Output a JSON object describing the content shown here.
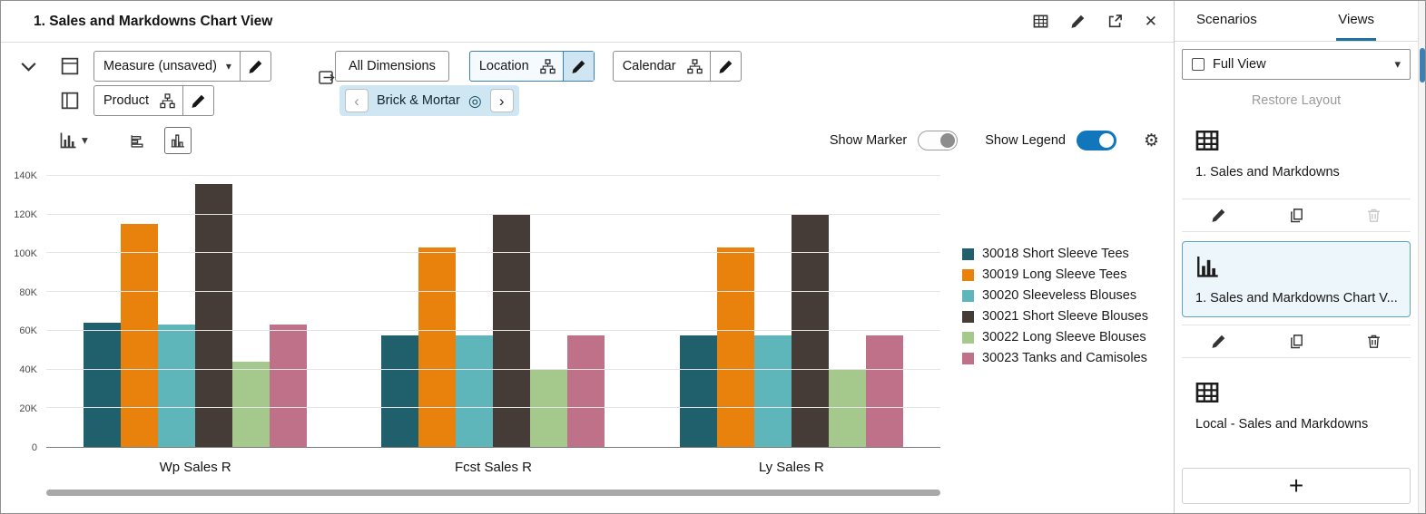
{
  "header": {
    "title": "1. Sales and Markdowns Chart View"
  },
  "toolbar": {
    "measure_label": "Measure (unsaved)",
    "product_label": "Product",
    "all_dimensions_label": "All Dimensions",
    "location_label": "Location",
    "calendar_label": "Calendar",
    "breadcrumb_label": "Brick & Mortar"
  },
  "controls": {
    "show_marker_label": "Show Marker",
    "marker_on": false,
    "show_legend_label": "Show Legend",
    "legend_on": true
  },
  "chart_data": {
    "type": "bar",
    "title": "",
    "categories": [
      "Wp Sales R",
      "Fcst Sales R",
      "Ly Sales R"
    ],
    "series": [
      {
        "name": "30018 Short Sleeve Tees",
        "color": "#1f606c",
        "values": [
          64000,
          57500,
          57500
        ]
      },
      {
        "name": "30019 Long Sleeve Tees",
        "color": "#e8820c",
        "values": [
          115000,
          103000,
          103000
        ]
      },
      {
        "name": "30020 Sleeveless Blouses",
        "color": "#5eb6bb",
        "values": [
          63000,
          57500,
          57500
        ]
      },
      {
        "name": "30021 Short Sleeve Blouses",
        "color": "#463c37",
        "values": [
          136000,
          120500,
          120500
        ]
      },
      {
        "name": "30022 Long Sleeve Blouses",
        "color": "#a5c98c",
        "values": [
          44000,
          40000,
          40000
        ]
      },
      {
        "name": "30023 Tanks and Camisoles",
        "color": "#c0718a",
        "values": [
          63000,
          57500,
          57500
        ]
      }
    ],
    "ylim": [
      0,
      140000
    ],
    "ytick_step": 20000,
    "ytick_labels": [
      "0",
      "20K",
      "40K",
      "60K",
      "80K",
      "100K",
      "120K",
      "140K"
    ],
    "grid": true,
    "legend_position": "right"
  },
  "sidebar": {
    "tabs": [
      {
        "label": "Scenarios"
      },
      {
        "label": "Views"
      }
    ],
    "active_tab": "Views",
    "full_view_label": "Full View",
    "restore_layout_label": "Restore Layout",
    "views": [
      {
        "label": "1. Sales and Markdowns",
        "icon": "table-icon",
        "selected": false,
        "delete_enabled": false
      },
      {
        "label": "1. Sales and Markdowns Chart V...",
        "icon": "bar-chart-icon",
        "selected": true,
        "delete_enabled": true
      },
      {
        "label": "Local - Sales and Markdowns",
        "icon": "table-icon",
        "selected": false,
        "delete_enabled": true
      }
    ]
  },
  "icons": {
    "close": "✕",
    "gear": "⚙",
    "target": "◎",
    "chevron_left": "‹",
    "chevron_right": "›",
    "caret_down": "▾",
    "plus": "+"
  },
  "colors": {
    "accent_blue": "#1276bd",
    "selected_card_border": "#5fa3c4",
    "selected_card_bg": "#edf6fa",
    "tab_underline": "#1d6f9e"
  }
}
